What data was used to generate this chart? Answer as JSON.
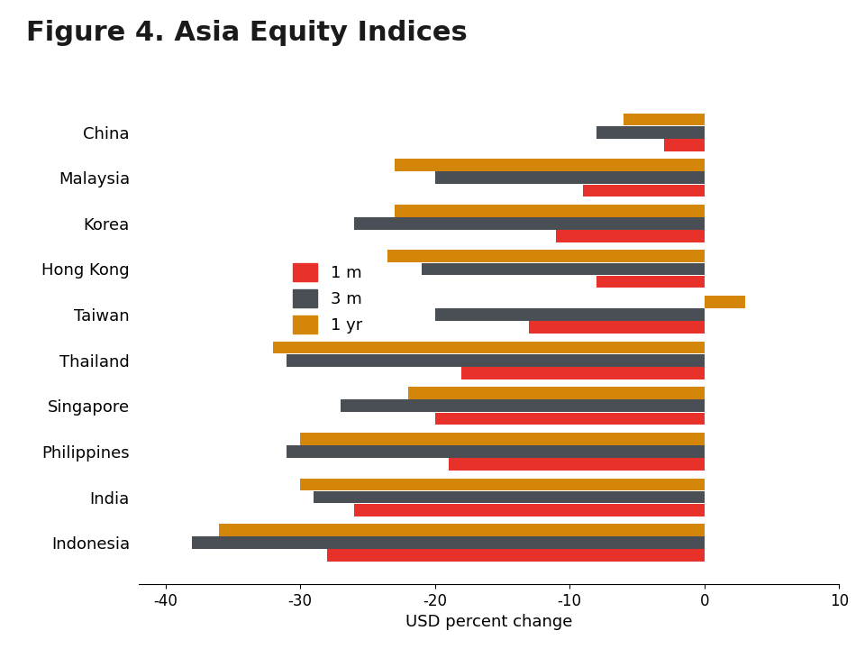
{
  "title": "Figure 4. Asia Equity Indices",
  "xlabel": "USD percent change",
  "categories": [
    "China",
    "Malaysia",
    "Korea",
    "Hong Kong",
    "Taiwan",
    "Thailand",
    "Singapore",
    "Philippines",
    "India",
    "Indonesia"
  ],
  "series": {
    "1 m": [
      -3.0,
      -9.0,
      -11.0,
      -8.0,
      -13.0,
      -18.0,
      -20.0,
      -19.0,
      -26.0,
      -28.0
    ],
    "3 m": [
      -8.0,
      -20.0,
      -26.0,
      -21.0,
      -20.0,
      -31.0,
      -27.0,
      -31.0,
      -29.0,
      -38.0
    ],
    "1 yr": [
      -6.0,
      -23.0,
      -23.0,
      -23.5,
      3.0,
      -32.0,
      -22.0,
      -30.0,
      -30.0,
      -36.0
    ]
  },
  "colors": {
    "1 m": "#E8312A",
    "3 m": "#4A4F55",
    "1 yr": "#D4860A"
  },
  "xlim": [
    -42,
    10
  ],
  "xticks": [
    -40,
    -30,
    -20,
    -10,
    0,
    10
  ],
  "background_color": "#FFFFFF",
  "title_fontsize": 22,
  "axis_fontsize": 12,
  "legend_fontsize": 13,
  "bar_height": 0.28
}
